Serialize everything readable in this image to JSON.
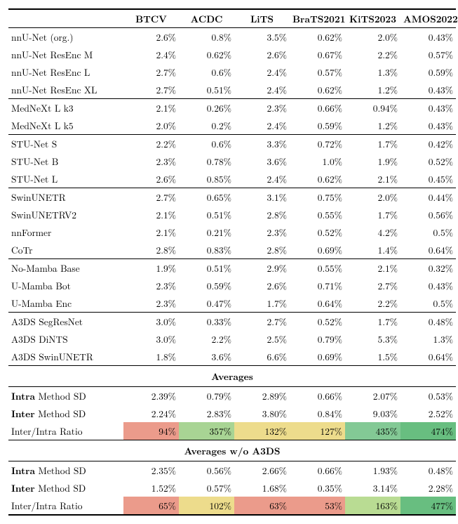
{
  "columns": [
    "BTCV",
    "ACDC",
    "LiTS",
    "BraTS2021",
    "KiTS2023",
    "AMOS2022"
  ],
  "groups": [
    {
      "rows": [
        {
          "name": "nnU-Net (org.)",
          "v": [
            "2.6%",
            "0.8%",
            "3.5%",
            "0.62%",
            "2.0%",
            "0.43%"
          ]
        },
        {
          "name": "nnU-Net ResEnc M",
          "v": [
            "2.4%",
            "0.62%",
            "2.6%",
            "0.67%",
            "2.2%",
            "0.57%"
          ]
        },
        {
          "name": "nnU-Net ResEnc L",
          "v": [
            "2.7%",
            "0.6%",
            "2.4%",
            "0.57%",
            "1.3%",
            "0.59%"
          ]
        },
        {
          "name": "nnU-Net ResEnc XL",
          "v": [
            "2.7%",
            "0.51%",
            "2.4%",
            "0.62%",
            "1.2%",
            "0.43%"
          ]
        }
      ]
    },
    {
      "rows": [
        {
          "name": "MedNeXt L k3",
          "v": [
            "2.1%",
            "0.26%",
            "2.3%",
            "0.66%",
            "0.94%",
            "0.43%"
          ]
        },
        {
          "name": "MedNeXt L k5",
          "v": [
            "2.0%",
            "0.2%",
            "2.4%",
            "0.59%",
            "1.2%",
            "0.43%"
          ]
        }
      ]
    },
    {
      "rows": [
        {
          "name": "STU-Net S",
          "v": [
            "2.2%",
            "0.6%",
            "3.3%",
            "0.72%",
            "1.7%",
            "0.42%"
          ]
        },
        {
          "name": "STU-Net B",
          "v": [
            "2.3%",
            "0.78%",
            "3.6%",
            "1.0%",
            "1.9%",
            "0.52%"
          ]
        },
        {
          "name": "STU-Net L",
          "v": [
            "2.6%",
            "0.85%",
            "2.4%",
            "0.62%",
            "2.1%",
            "0.45%"
          ]
        }
      ]
    },
    {
      "rows": [
        {
          "name": "SwinUNETR",
          "v": [
            "2.7%",
            "0.65%",
            "3.1%",
            "0.75%",
            "2.0%",
            "0.44%"
          ]
        },
        {
          "name": "SwinUNETRV2",
          "v": [
            "2.1%",
            "0.51%",
            "2.8%",
            "0.55%",
            "1.7%",
            "0.56%"
          ]
        },
        {
          "name": "nnFormer",
          "v": [
            "2.1%",
            "0.21%",
            "2.3%",
            "0.52%",
            "4.2%",
            "0.5%"
          ]
        },
        {
          "name": "CoTr",
          "v": [
            "2.8%",
            "0.83%",
            "2.8%",
            "0.69%",
            "1.4%",
            "0.64%"
          ]
        }
      ]
    },
    {
      "rows": [
        {
          "name": "No-Mamba Base",
          "v": [
            "1.9%",
            "0.51%",
            "2.9%",
            "0.55%",
            "2.1%",
            "0.32%"
          ]
        },
        {
          "name": "U-Mamba Bot",
          "v": [
            "2.3%",
            "0.59%",
            "2.6%",
            "0.71%",
            "2.7%",
            "0.43%"
          ]
        },
        {
          "name": "U-Mamba Enc",
          "v": [
            "2.3%",
            "0.47%",
            "1.7%",
            "0.64%",
            "2.2%",
            "0.5%"
          ]
        }
      ]
    },
    {
      "rows": [
        {
          "name": "A3DS SegResNet",
          "v": [
            "3.0%",
            "0.33%",
            "2.7%",
            "0.52%",
            "1.7%",
            "0.48%"
          ]
        },
        {
          "name": "A3DS DiNTS",
          "v": [
            "3.0%",
            "2.2%",
            "2.5%",
            "0.79%",
            "5.3%",
            "1.3%"
          ]
        },
        {
          "name": "A3DS SwinUNETR",
          "v": [
            "1.8%",
            "3.6%",
            "6.6%",
            "0.69%",
            "1.5%",
            "0.64%"
          ]
        }
      ]
    }
  ],
  "sections": [
    {
      "title": "Averages",
      "rows": [
        {
          "bold": "Intra",
          "rest": " Method SD",
          "v": [
            "2.39%",
            "0.79%",
            "2.89%",
            "0.66%",
            "2.07%",
            "0.53%"
          ],
          "hl": [
            null,
            null,
            null,
            null,
            null,
            null
          ]
        },
        {
          "bold": "Inter",
          "rest": " Method SD",
          "v": [
            "2.24%",
            "2.83%",
            "3.80%",
            "0.84%",
            "9.03%",
            "2.52%"
          ],
          "hl": [
            null,
            null,
            null,
            null,
            null,
            null
          ]
        },
        {
          "bold": "",
          "rest": "Inter/Intra Ratio",
          "v": [
            "94%",
            "357%",
            "132%",
            "127%",
            "435%",
            "474%"
          ],
          "hl": [
            "#eb9b8b",
            "#a8d494",
            "#eddc8c",
            "#eddc8c",
            "#83c995",
            "#68be80"
          ]
        }
      ]
    },
    {
      "title": "Averages w/o A3DS",
      "rows": [
        {
          "bold": "Intra",
          "rest": " Method SD",
          "v": [
            "2.35%",
            "0.56%",
            "2.66%",
            "0.66%",
            "1.93%",
            "0.48%"
          ],
          "hl": [
            null,
            null,
            null,
            null,
            null,
            null
          ]
        },
        {
          "bold": "Inter",
          "rest": " Method SD",
          "v": [
            "1.52%",
            "0.57%",
            "1.68%",
            "0.35%",
            "3.14%",
            "2.28%"
          ],
          "hl": [
            null,
            null,
            null,
            null,
            null,
            null
          ]
        },
        {
          "bold": "",
          "rest": "Inter/Intra Ratio",
          "v": [
            "65%",
            "102%",
            "63%",
            "53%",
            "163%",
            "477%"
          ],
          "hl": [
            "#eb9b8b",
            "#eddc8c",
            "#eb9b8b",
            "#eb9b8b",
            "#b9dc93",
            "#68be80"
          ]
        }
      ]
    }
  ]
}
